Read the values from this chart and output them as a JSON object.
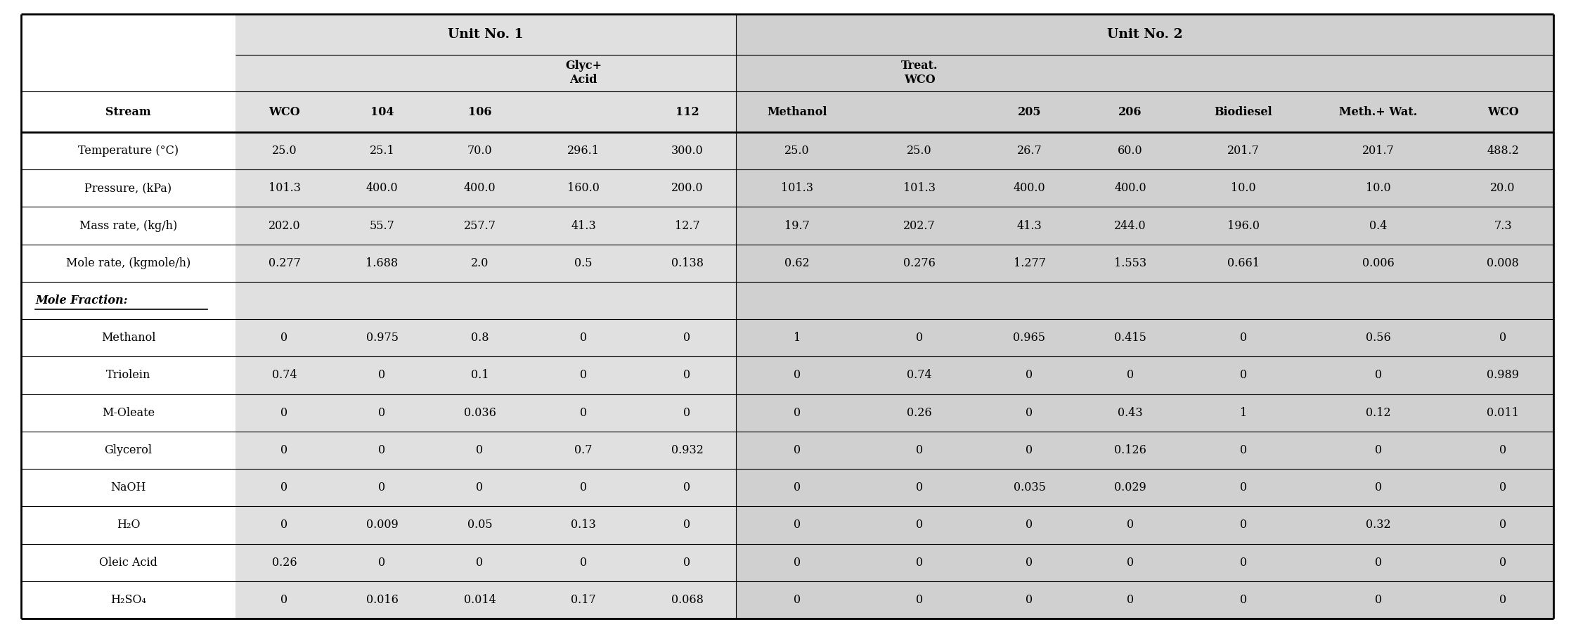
{
  "col_labels": [
    "Stream",
    "WCO",
    "104",
    "106",
    "Glyc+\nAcid",
    "112",
    "Methanol",
    "Treat.\nWCO",
    "205",
    "206",
    "Biodiesel",
    "Meth.+ Wat.",
    "WCO"
  ],
  "unit1_label": "Unit No. 1",
  "unit2_label": "Unit No. 2",
  "rows": [
    [
      "Temperature (°C)",
      "25.0",
      "25.1",
      "70.0",
      "296.1",
      "300.0",
      "25.0",
      "25.0",
      "26.7",
      "60.0",
      "201.7",
      "201.7",
      "488.2"
    ],
    [
      "Pressure, (kPa)",
      "101.3",
      "400.0",
      "400.0",
      "160.0",
      "200.0",
      "101.3",
      "101.3",
      "400.0",
      "400.0",
      "10.0",
      "10.0",
      "20.0"
    ],
    [
      "Mass rate, (kg/h)",
      "202.0",
      "55.7",
      "257.7",
      "41.3",
      "12.7",
      "19.7",
      "202.7",
      "41.3",
      "244.0",
      "196.0",
      "0.4",
      "7.3"
    ],
    [
      "Mole rate, (kgmole/h)",
      "0.277",
      "1.688",
      "2.0",
      "0.5",
      "0.138",
      "0.62",
      "0.276",
      "1.277",
      "1.553",
      "0.661",
      "0.006",
      "0.008"
    ],
    [
      "__MOLE_FRACTION__",
      "",
      "",
      "",
      "",
      "",
      "",
      "",
      "",
      "",
      "",
      "",
      ""
    ],
    [
      "Methanol",
      "0",
      "0.975",
      "0.8",
      "0",
      "0",
      "1",
      "0",
      "0.965",
      "0.415",
      "0",
      "0.56",
      "0"
    ],
    [
      "Triolein",
      "0.74",
      "0",
      "0.1",
      "0",
      "0",
      "0",
      "0.74",
      "0",
      "0",
      "0",
      "0",
      "0.989"
    ],
    [
      "M-Oleate",
      "0",
      "0",
      "0.036",
      "0",
      "0",
      "0",
      "0.26",
      "0",
      "0.43",
      "1",
      "0.12",
      "0.011"
    ],
    [
      "Glycerol",
      "0",
      "0",
      "0",
      "0.7",
      "0.932",
      "0",
      "0",
      "0",
      "0.126",
      "0",
      "0",
      "0"
    ],
    [
      "NaOH",
      "0",
      "0",
      "0",
      "0",
      "0",
      "0",
      "0",
      "0.035",
      "0.029",
      "0",
      "0",
      "0"
    ],
    [
      "H₂O",
      "0",
      "0.009",
      "0.05",
      "0.13",
      "0",
      "0",
      "0",
      "0",
      "0",
      "0",
      "0.32",
      "0"
    ],
    [
      "Oleic Acid",
      "0.26",
      "0",
      "0",
      "0",
      "0",
      "0",
      "0",
      "0",
      "0",
      "0",
      "0",
      "0"
    ],
    [
      "H₂SO₄",
      "0",
      "0.016",
      "0.014",
      "0.17",
      "0.068",
      "0",
      "0",
      "0",
      "0",
      "0",
      "0",
      "0"
    ]
  ],
  "bg_unit1": "#e0e0e0",
  "bg_unit2": "#d0d0d0",
  "bg_white": "#ffffff",
  "line_color": "#000000",
  "text_color": "#000000"
}
